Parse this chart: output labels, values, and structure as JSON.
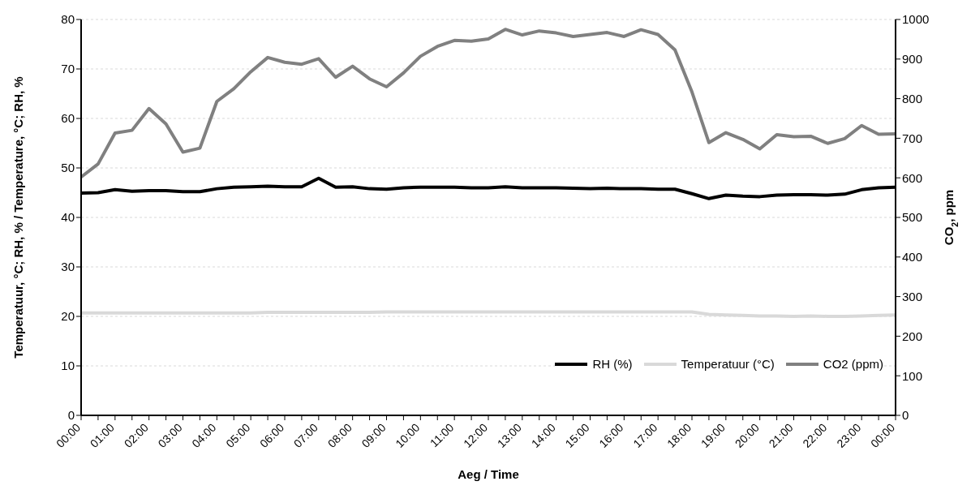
{
  "chart_data": {
    "type": "line",
    "xlabel": "Aeg / Time",
    "ylabel": "Temperatuur, °C; RH, % / Temperature, °C; RH, %",
    "y2label": "CO$_{2}$, ppm",
    "categories": [
      "00:00",
      null,
      "01:00",
      null,
      "02:00",
      null,
      "03:00",
      null,
      "04:00",
      null,
      "05:00",
      null,
      "06:00",
      null,
      "07:00",
      null,
      "08:00",
      null,
      "09:00",
      null,
      "10:00",
      null,
      "11:00",
      null,
      "12:00",
      null,
      "13:00",
      null,
      "14:00",
      null,
      "15:00",
      null,
      "16:00",
      null,
      "17:00",
      null,
      "18:00",
      null,
      "19:00",
      null,
      "20:00",
      null,
      "21:00",
      null,
      "22:00",
      null,
      "23:00",
      null,
      "00:00"
    ],
    "series": [
      {
        "name": "RH (%)",
        "color": "#000000",
        "values": [
          44.9,
          45.0,
          45.6,
          45.3,
          45.4,
          45.4,
          45.2,
          45.2,
          45.8,
          46.1,
          46.2,
          46.3,
          46.2,
          46.2,
          47.9,
          46.1,
          46.2,
          45.8,
          45.7,
          46.0,
          46.1,
          46.1,
          46.1,
          46.0,
          46.0,
          46.2,
          46.0,
          46.0,
          46.0,
          45.9,
          45.8,
          45.9,
          45.8,
          45.8,
          45.7,
          45.7,
          44.8,
          43.8,
          44.5,
          44.3,
          44.2,
          44.5,
          44.6,
          44.6,
          44.5,
          44.7,
          45.6,
          46.0,
          46.1
        ]
      },
      {
        "name": "Temperatuur (°C)",
        "color": "#d9d9d9",
        "values": [
          20.7,
          20.7,
          20.7,
          20.7,
          20.7,
          20.7,
          20.7,
          20.7,
          20.7,
          20.7,
          20.7,
          20.8,
          20.8,
          20.8,
          20.8,
          20.8,
          20.8,
          20.8,
          20.9,
          20.9,
          20.9,
          20.9,
          20.9,
          20.9,
          20.9,
          20.9,
          20.9,
          20.9,
          20.9,
          20.9,
          20.9,
          20.9,
          20.9,
          20.9,
          20.9,
          20.9,
          20.9,
          20.4,
          20.3,
          20.2,
          20.1,
          20.1,
          20.0,
          20.1,
          20.0,
          20.0,
          20.1,
          20.2,
          20.3
        ]
      },
      {
        "name": "CO2 (ppm)",
        "color": "#808080",
        "axis": "y2",
        "values": [
          602,
          635,
          713,
          720,
          775,
          736,
          665,
          675,
          793,
          825,
          868,
          904,
          892,
          887,
          901,
          854,
          882,
          850,
          830,
          865,
          907,
          932,
          947,
          945,
          951,
          975,
          961,
          971,
          966,
          957,
          962,
          967,
          957,
          974,
          962,
          923,
          817,
          689,
          714,
          697,
          673,
          709,
          704,
          705,
          687,
          699,
          732,
          710,
          711
        ]
      }
    ],
    "ylim": [
      0,
      80
    ],
    "yticks": [
      0,
      10,
      20,
      30,
      40,
      50,
      60,
      70,
      80
    ],
    "y2lim": [
      0,
      1000
    ],
    "y2ticks": [
      0,
      100,
      200,
      300,
      400,
      500,
      600,
      700,
      800,
      900,
      1000
    ],
    "grid": "y",
    "legend": "bottom right",
    "marker": "none",
    "line_style": "solid"
  }
}
